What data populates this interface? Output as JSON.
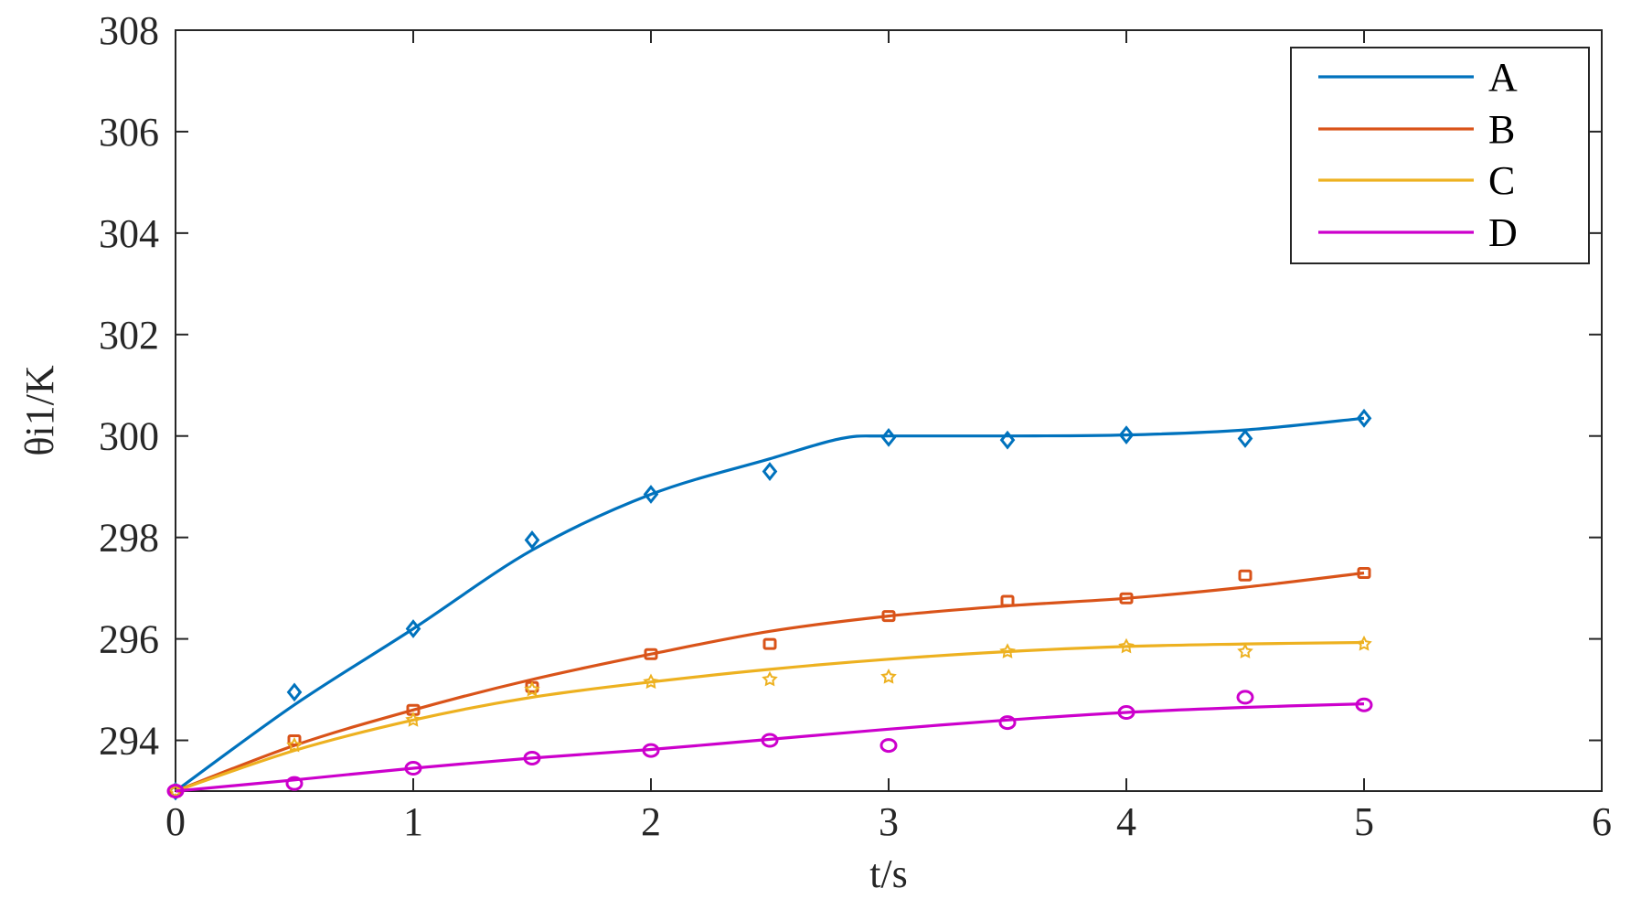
{
  "chart_data": {
    "type": "line",
    "title": "",
    "xlabel": "t/s",
    "ylabel": "θi1/K",
    "xlim": [
      0,
      6
    ],
    "ylim": [
      293,
      308
    ],
    "xticks": [
      "0",
      "1",
      "2",
      "3",
      "4",
      "5",
      "6"
    ],
    "yticks": [
      "294",
      "296",
      "298",
      "300",
      "302",
      "304",
      "306",
      "308"
    ],
    "grid": false,
    "legend_position": "top-right",
    "series": [
      {
        "name": "A",
        "color": "#0072BD",
        "marker": "diamond",
        "points_x": [
          0,
          0.5,
          1,
          1.5,
          2,
          2.5,
          3,
          3.5,
          4,
          4.5,
          5
        ],
        "points_y": [
          293,
          294.95,
          296.2,
          297.95,
          298.85,
          299.3,
          299.97,
          299.92,
          300.02,
          299.95,
          300.35
        ],
        "curve": [
          [
            0,
            293
          ],
          [
            0.5,
            294.7
          ],
          [
            1,
            296.2
          ],
          [
            1.5,
            297.75
          ],
          [
            2,
            298.85
          ],
          [
            2.5,
            299.55
          ],
          [
            2.8,
            299.95
          ],
          [
            3,
            300
          ],
          [
            3.5,
            300
          ],
          [
            4,
            300.02
          ],
          [
            4.5,
            300.12
          ],
          [
            5,
            300.35
          ]
        ]
      },
      {
        "name": "B",
        "color": "#D95319",
        "marker": "square",
        "points_x": [
          0,
          0.5,
          1,
          1.5,
          2,
          2.5,
          3,
          3.5,
          4,
          4.5,
          5
        ],
        "points_y": [
          293,
          294,
          294.6,
          295.05,
          295.7,
          295.9,
          296.45,
          296.75,
          296.8,
          297.25,
          297.3
        ],
        "curve": [
          [
            0,
            293
          ],
          [
            0.5,
            293.9
          ],
          [
            1,
            294.6
          ],
          [
            1.5,
            295.2
          ],
          [
            2,
            295.7
          ],
          [
            2.5,
            296.15
          ],
          [
            3,
            296.45
          ],
          [
            3.5,
            296.65
          ],
          [
            4,
            296.8
          ],
          [
            4.5,
            297.02
          ],
          [
            5,
            297.3
          ]
        ]
      },
      {
        "name": "C",
        "color": "#EDB120",
        "marker": "pentagram",
        "points_x": [
          0,
          0.5,
          1,
          1.5,
          2,
          2.5,
          3,
          3.5,
          4,
          4.5,
          5
        ],
        "points_y": [
          293,
          293.9,
          294.4,
          295.0,
          295.15,
          295.2,
          295.25,
          295.75,
          295.85,
          295.75,
          295.9
        ],
        "curve": [
          [
            0,
            293
          ],
          [
            0.5,
            293.8
          ],
          [
            1,
            294.4
          ],
          [
            1.5,
            294.85
          ],
          [
            2,
            295.15
          ],
          [
            2.5,
            295.4
          ],
          [
            3,
            295.6
          ],
          [
            3.5,
            295.75
          ],
          [
            4,
            295.85
          ],
          [
            4.5,
            295.9
          ],
          [
            5,
            295.93
          ]
        ]
      },
      {
        "name": "D",
        "color": "#CC00CC",
        "marker": "circle",
        "points_x": [
          0,
          0.5,
          1,
          1.5,
          2,
          2.5,
          3,
          3.5,
          4,
          4.5,
          5
        ],
        "points_y": [
          293,
          293.15,
          293.45,
          293.65,
          293.8,
          294.0,
          293.9,
          294.35,
          294.55,
          294.85,
          294.7
        ],
        "curve": [
          [
            0,
            293
          ],
          [
            0.5,
            293.22
          ],
          [
            1,
            293.45
          ],
          [
            1.5,
            293.65
          ],
          [
            2,
            293.82
          ],
          [
            2.5,
            294.02
          ],
          [
            3,
            294.22
          ],
          [
            3.5,
            294.4
          ],
          [
            4,
            294.55
          ],
          [
            4.5,
            294.65
          ],
          [
            5,
            294.72
          ]
        ]
      }
    ]
  }
}
